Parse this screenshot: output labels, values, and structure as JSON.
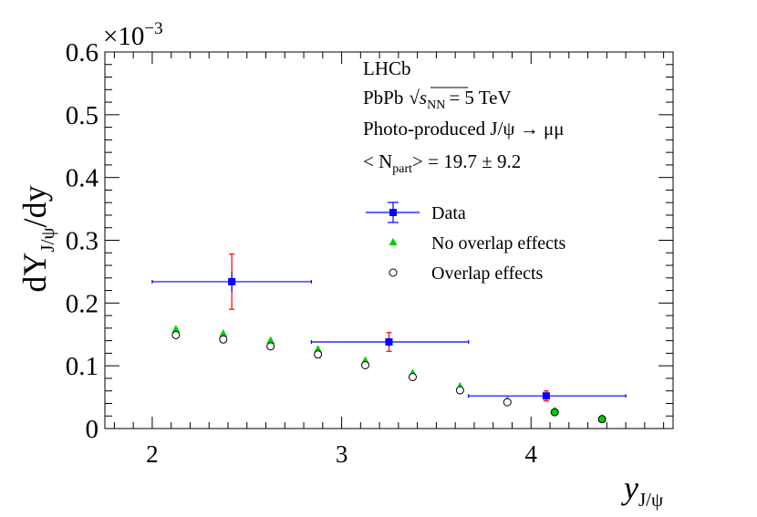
{
  "chart_data": {
    "type": "scatter",
    "x_axis": {
      "label_main": "y",
      "label_sub": "J/ψ",
      "range": [
        1.75,
        4.75
      ],
      "ticks": [
        2,
        3,
        4
      ],
      "tick_labels": [
        "2",
        "3",
        "4"
      ]
    },
    "y_axis": {
      "label_main": "dY",
      "label_sub": "J/ψ",
      "label_tail": "/dy",
      "range": [
        0,
        0.6
      ],
      "ticks": [
        0,
        0.1,
        0.2,
        0.3,
        0.4,
        0.5,
        0.6
      ],
      "tick_labels": [
        "0",
        "0.1",
        "0.2",
        "0.3",
        "0.4",
        "0.5",
        "0.6"
      ],
      "multiplier_base": "×10",
      "multiplier_exp": "−3"
    },
    "annotations": [
      "LHCb",
      "PbPb",
      "√",
      "s",
      "NN",
      "= 5 TeV",
      "Photo-produced J/ψ → μμ",
      "< N",
      "part",
      "> = 19.7 ± 9.2"
    ],
    "series": [
      {
        "name": "Data",
        "color": "#0000ff",
        "error_color": "#ff0000",
        "marker": "square",
        "points": [
          {
            "x": 2.42,
            "y": 0.234,
            "xerr_low": 2.0,
            "xerr_high": 2.84,
            "stat_low": 0.218,
            "stat_high": 0.25,
            "syst_low": 0.19,
            "syst_high": 0.278
          },
          {
            "x": 3.25,
            "y": 0.138,
            "xerr_low": 2.84,
            "xerr_high": 3.67,
            "stat_low": 0.131,
            "stat_high": 0.145,
            "syst_low": 0.123,
            "syst_high": 0.153
          },
          {
            "x": 4.08,
            "y": 0.052,
            "xerr_low": 3.67,
            "xerr_high": 4.5,
            "stat_low": 0.049,
            "stat_high": 0.055,
            "syst_low": 0.044,
            "syst_high": 0.06
          }
        ]
      },
      {
        "name": "No overlap effects",
        "color": "#00cc00",
        "marker": "triangle",
        "x": [
          2.125,
          2.375,
          2.625,
          2.875,
          3.125,
          3.375,
          3.625,
          3.875,
          4.125,
          4.375
        ],
        "y": [
          0.158,
          0.151,
          0.14,
          0.126,
          0.108,
          0.088,
          0.067,
          0.045,
          0.028,
          0.016
        ]
      },
      {
        "name": "Overlap effects",
        "color": "#000000",
        "marker": "open-circle",
        "x": [
          2.125,
          2.375,
          2.625,
          2.875,
          3.125,
          3.375,
          3.625,
          3.875,
          4.125,
          4.375
        ],
        "y": [
          0.149,
          0.142,
          0.131,
          0.118,
          0.101,
          0.082,
          0.061,
          0.042,
          0.026,
          0.015
        ]
      }
    ],
    "legend": {
      "position": "upper-right",
      "entries": [
        "Data",
        "No overlap effects",
        "Overlap effects"
      ]
    }
  }
}
